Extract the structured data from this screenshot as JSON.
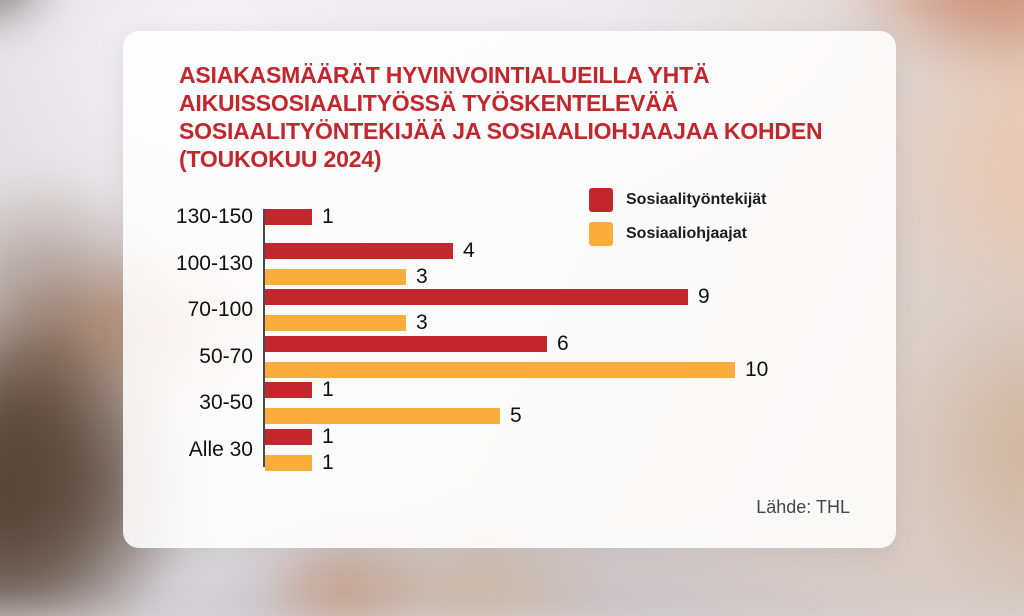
{
  "card": {
    "title_lines": [
      "ASIAKASMÄÄRÄT HYVINVOINTIALUEILLA YHTÄ",
      "AIKUISSOSIAALITYÖSSÄ TYÖSKENTELEVÄÄ",
      "SOSIAALITYÖNTEKIJÄÄ JA SOSIAALIOHJAAJAA KOHDEN",
      "(TOUKOKUU 2024)"
    ],
    "source": "Lähde: THL"
  },
  "colors": {
    "title_red": "#C1272D",
    "bar_red": "#C1272D",
    "bar_orange": "#F9AE3B",
    "value_text": "#111111",
    "source_gray": "#46464E",
    "axis": "#4A4A4A",
    "card_background": "#FFFFFF"
  },
  "chart_data": {
    "type": "bar",
    "orientation": "horizontal",
    "title": "ASIAKASMÄÄRÄT HYVINVOINTIALUEILLA YHTÄ AIKUISSOSIAALITYÖSSÄ TYÖSKENTELEVÄÄ SOSIAALITYÖNTEKIJÄÄ JA SOSIAALIOHJAAJAA KOHDEN (TOUKOKUU 2024)",
    "categories": [
      "130-150",
      "100-130",
      "70-100",
      "50-70",
      "30-50",
      "Alle 30"
    ],
    "series": [
      {
        "name": "Sosiaalityöntekijät",
        "color": "#C1272D",
        "values": [
          1,
          4,
          9,
          6,
          1,
          1
        ]
      },
      {
        "name": "Sosiaaliohjaajat",
        "color": "#F9AE3B",
        "values": [
          null,
          3,
          3,
          10,
          5,
          1
        ]
      }
    ],
    "value_labels": true,
    "xlim": [
      0,
      13
    ],
    "grid": false,
    "legend_position": "top-right",
    "source": "Lähde: THL"
  }
}
